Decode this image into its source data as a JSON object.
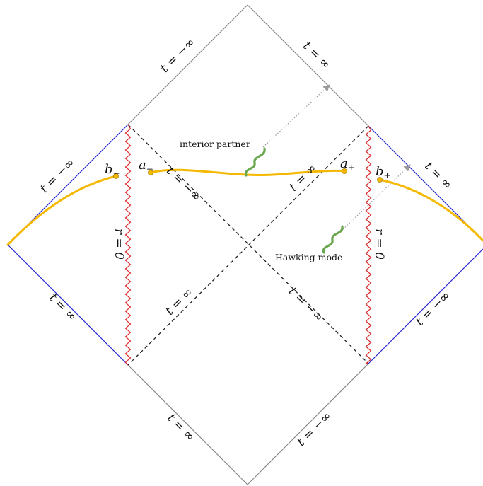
{
  "diagram": {
    "labels": {
      "top_left_edge": "t = −∞",
      "top_right_edge": "t = ∞",
      "left_upper_edge": "t = −∞",
      "left_lower_edge": "t = ∞",
      "right_upper_edge": "t = ∞",
      "right_lower_edge": "t = −∞",
      "bottom_left_edge": "t = ∞",
      "bottom_right_edge": "t = −∞",
      "diag_upper_left": "t = −∞",
      "diag_upper_right": "t = ∞",
      "diag_lower_left": "t = ∞",
      "diag_lower_right": "t = −∞",
      "singularity_left": "r = 0",
      "singularity_right": "r = 0"
    },
    "points": {
      "b_minus": {
        "base": "b",
        "sub": "−"
      },
      "a_minus": {
        "base": "a",
        "sub": "−"
      },
      "a_plus": {
        "base": "a",
        "sub": "+"
      },
      "b_plus": {
        "base": "b",
        "sub": "+"
      }
    },
    "annotations": {
      "interior_partner": "interior partner",
      "hawking_mode": "Hawking mode"
    },
    "colors": {
      "outer_edges": "#8a8a8a",
      "asymptotic_edges": "#2b2bd6",
      "horizons": "#222222",
      "singularity": "#e0282a",
      "slice": "#f5b800",
      "modes": "#6aa84f",
      "rays": "#9a9a9a"
    }
  }
}
